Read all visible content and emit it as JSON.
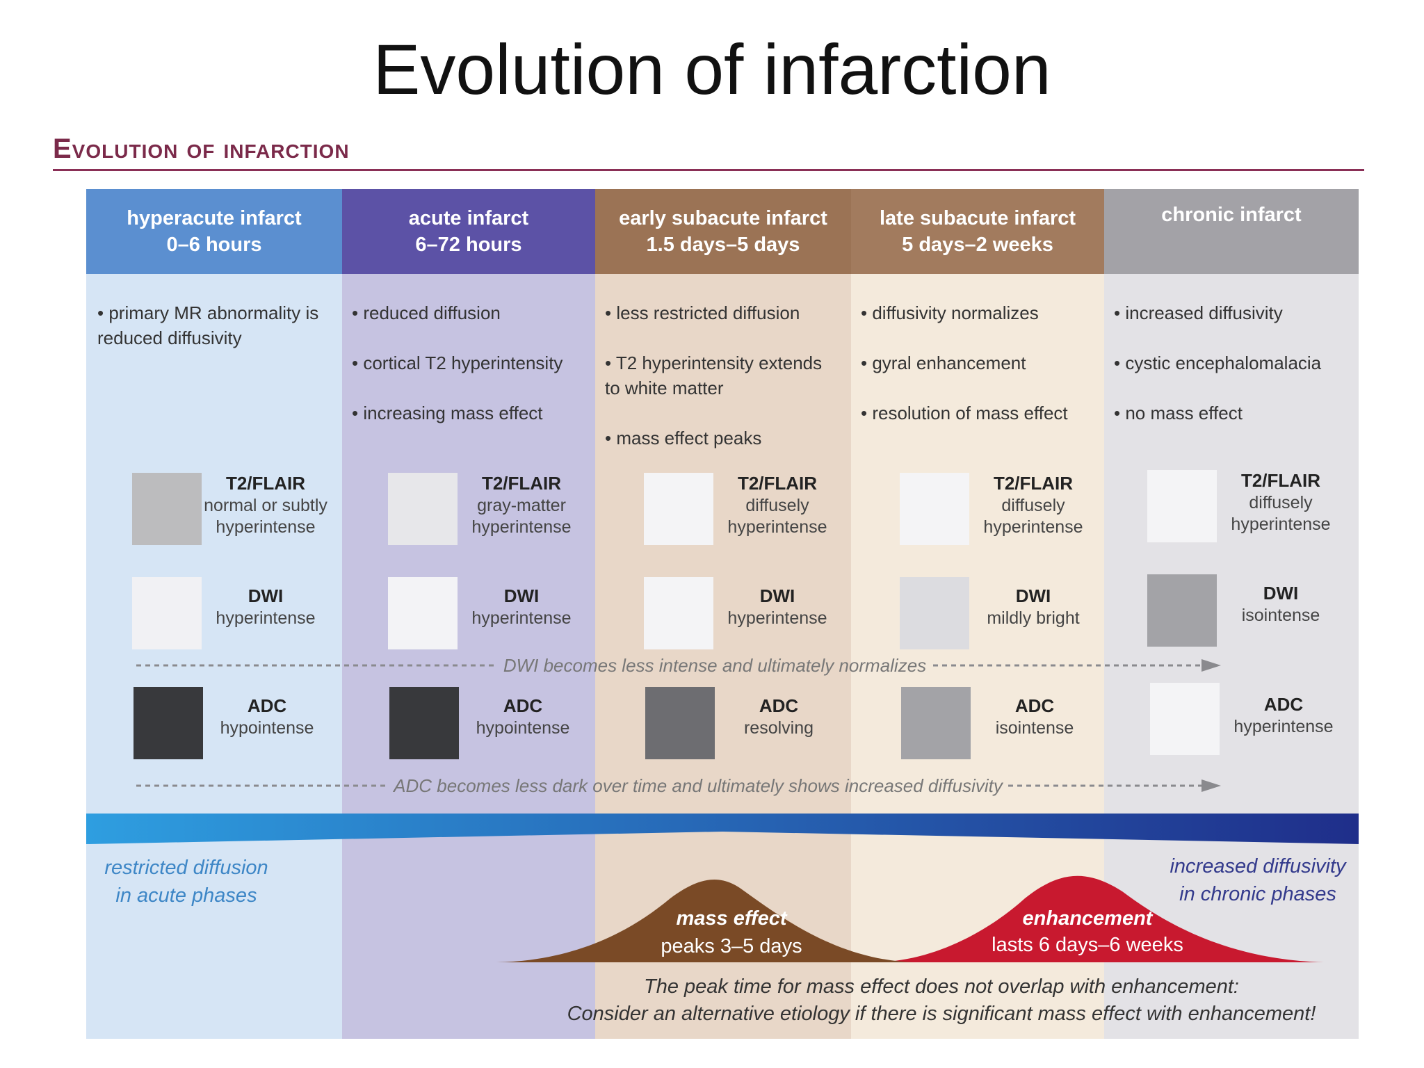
{
  "slide_title": "Evolution of infarction",
  "figure_heading": "Evolution of infarction",
  "colors": {
    "col_bg": [
      "#d6e5f5",
      "#c6c3e1",
      "#e8d7c8",
      "#f4eadc",
      "#e3e2e6"
    ],
    "col_head": [
      "#5b8fd0",
      "#5c52a6",
      "#9b7355",
      "#a27b5e",
      "#a3a2a7"
    ],
    "mass_effect": "#7a4a26",
    "enhancement": "#c8192f",
    "diff_restricted": "#2e9ee0",
    "diff_increased": "#1f2e8a"
  },
  "columns": [
    {
      "title": "hyperacute infarct",
      "time": "0–6 hours",
      "bullets": [
        "• primary MR abnormality is reduced diffusivity"
      ],
      "t2": {
        "label": "T2/FLAIR",
        "desc": "normal or subtly hyperintense",
        "color": "#bcbcbe"
      },
      "dwi": {
        "label": "DWI",
        "desc": "hyperintense",
        "color": "#f1f1f4"
      },
      "adc": {
        "label": "ADC",
        "desc": "hypointense",
        "color": "#38393c"
      }
    },
    {
      "title": "acute infarct",
      "time": "6–72 hours",
      "bullets": [
        "• reduced diffusion",
        "• cortical T2 hyperintensity",
        "• increasing mass effect"
      ],
      "t2": {
        "label": "T2/FLAIR",
        "desc": "gray-matter hyperintense",
        "color": "#e7e7ea"
      },
      "dwi": {
        "label": "DWI",
        "desc": "hyperintense",
        "color": "#f3f3f6"
      },
      "adc": {
        "label": "ADC",
        "desc": "hypointense",
        "color": "#38393c"
      }
    },
    {
      "title": "early subacute infarct",
      "time": "1.5 days–5 days",
      "bullets": [
        "• less restricted diffusion",
        "• T2 hyperintensity extends to white matter",
        "• mass effect peaks"
      ],
      "t2": {
        "label": "T2/FLAIR",
        "desc": "diffusely hyperintense",
        "color": "#f4f4f6"
      },
      "dwi": {
        "label": "DWI",
        "desc": "hyperintense",
        "color": "#f4f4f6"
      },
      "adc": {
        "label": "ADC",
        "desc": "resolving",
        "color": "#6d6d71"
      }
    },
    {
      "title": "late subacute infarct",
      "time": "5 days–2 weeks",
      "bullets": [
        "• diffusivity normalizes",
        "• gyral enhancement",
        "• resolution of mass effect"
      ],
      "t2": {
        "label": "T2/FLAIR",
        "desc": "diffusely hyperintense",
        "color": "#f4f4f6"
      },
      "dwi": {
        "label": "DWI",
        "desc": "mildly bright",
        "color": "#dcdce0"
      },
      "adc": {
        "label": "ADC",
        "desc": "isointense",
        "color": "#a3a3a7"
      }
    },
    {
      "title": "chronic infarct",
      "time": "",
      "bullets": [
        "• increased diffusivity",
        "• cystic encephalomalacia",
        "• no mass effect"
      ],
      "t2": {
        "label": "T2/FLAIR",
        "desc": "diffusely hyperintense",
        "color": "#f4f4f6"
      },
      "dwi": {
        "label": "DWI",
        "desc": "isointense",
        "color": "#a3a3a7"
      },
      "adc": {
        "label": "ADC",
        "desc": "hyperintense",
        "color": "#f4f4f6"
      }
    }
  ],
  "dwi_arrow_label": "DWI becomes less intense and ultimately normalizes",
  "adc_arrow_label": "ADC becomes less dark over time and ultimately shows increased diffusivity",
  "diffusion_left": "restricted diffusion in acute phases",
  "diffusion_right": "increased diffusivity in chronic phases",
  "mass_effect_title": "mass effect",
  "mass_effect_desc": "peaks 3–5 days",
  "enhancement_title": "enhancement",
  "enhancement_desc": "lasts 6 days–6 weeks",
  "footnote_line1": "The peak time for mass effect does not overlap with enhancement:",
  "footnote_line2": "Consider an alternative etiology if there is significant mass effect with enhancement!"
}
